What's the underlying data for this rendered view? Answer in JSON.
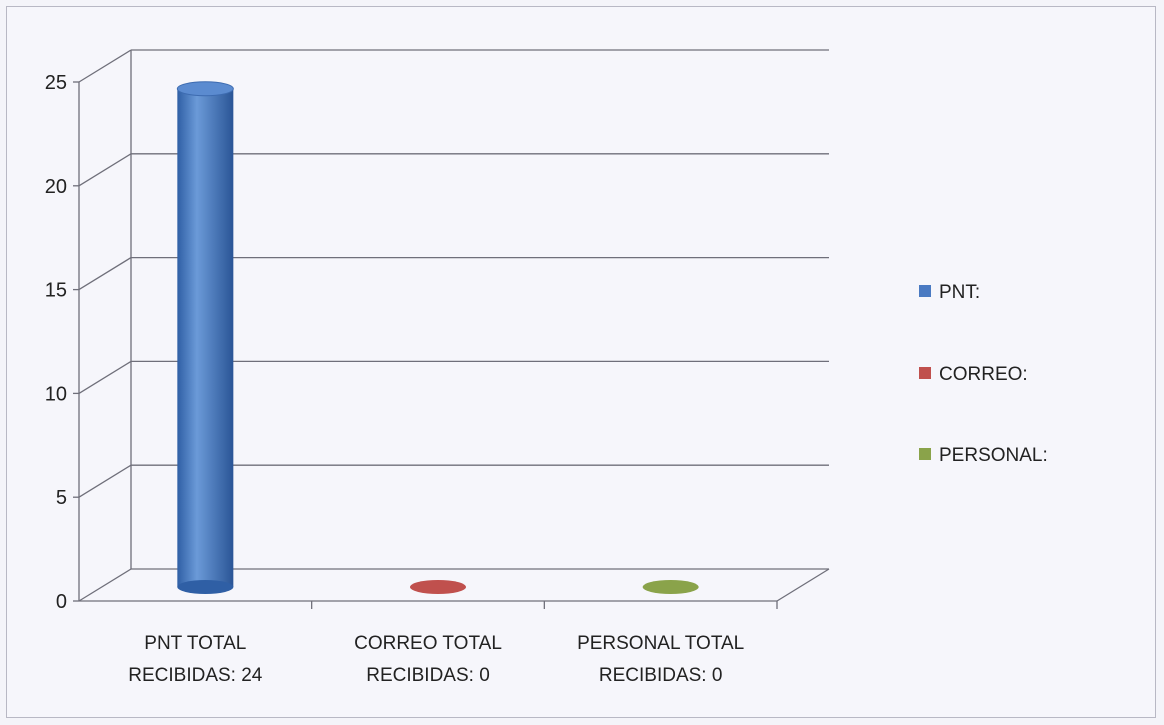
{
  "chart_data": {
    "type": "bar",
    "categories": [
      {
        "line1": "PNT TOTAL",
        "line2": "RECIBIDAS: 24"
      },
      {
        "line1": "CORREO TOTAL",
        "line2": "RECIBIDAS: 0"
      },
      {
        "line1": "PERSONAL TOTAL",
        "line2": "RECIBIDAS: 0"
      }
    ],
    "values": [
      24,
      0,
      0
    ],
    "yticks": [
      "0",
      "5",
      "10",
      "15",
      "20",
      "25"
    ],
    "ylim": [
      0,
      25
    ],
    "grid": true,
    "legend_position": "right",
    "legend": [
      {
        "label": "PNT:",
        "color": "#4a7ac2"
      },
      {
        "label": "CORREO:",
        "color": "#c0504d"
      },
      {
        "label": "PERSONAL:",
        "color": "#8aa34a"
      }
    ],
    "colors": [
      "#4a7ac2",
      "#c0504d",
      "#8aa34a"
    ]
  }
}
